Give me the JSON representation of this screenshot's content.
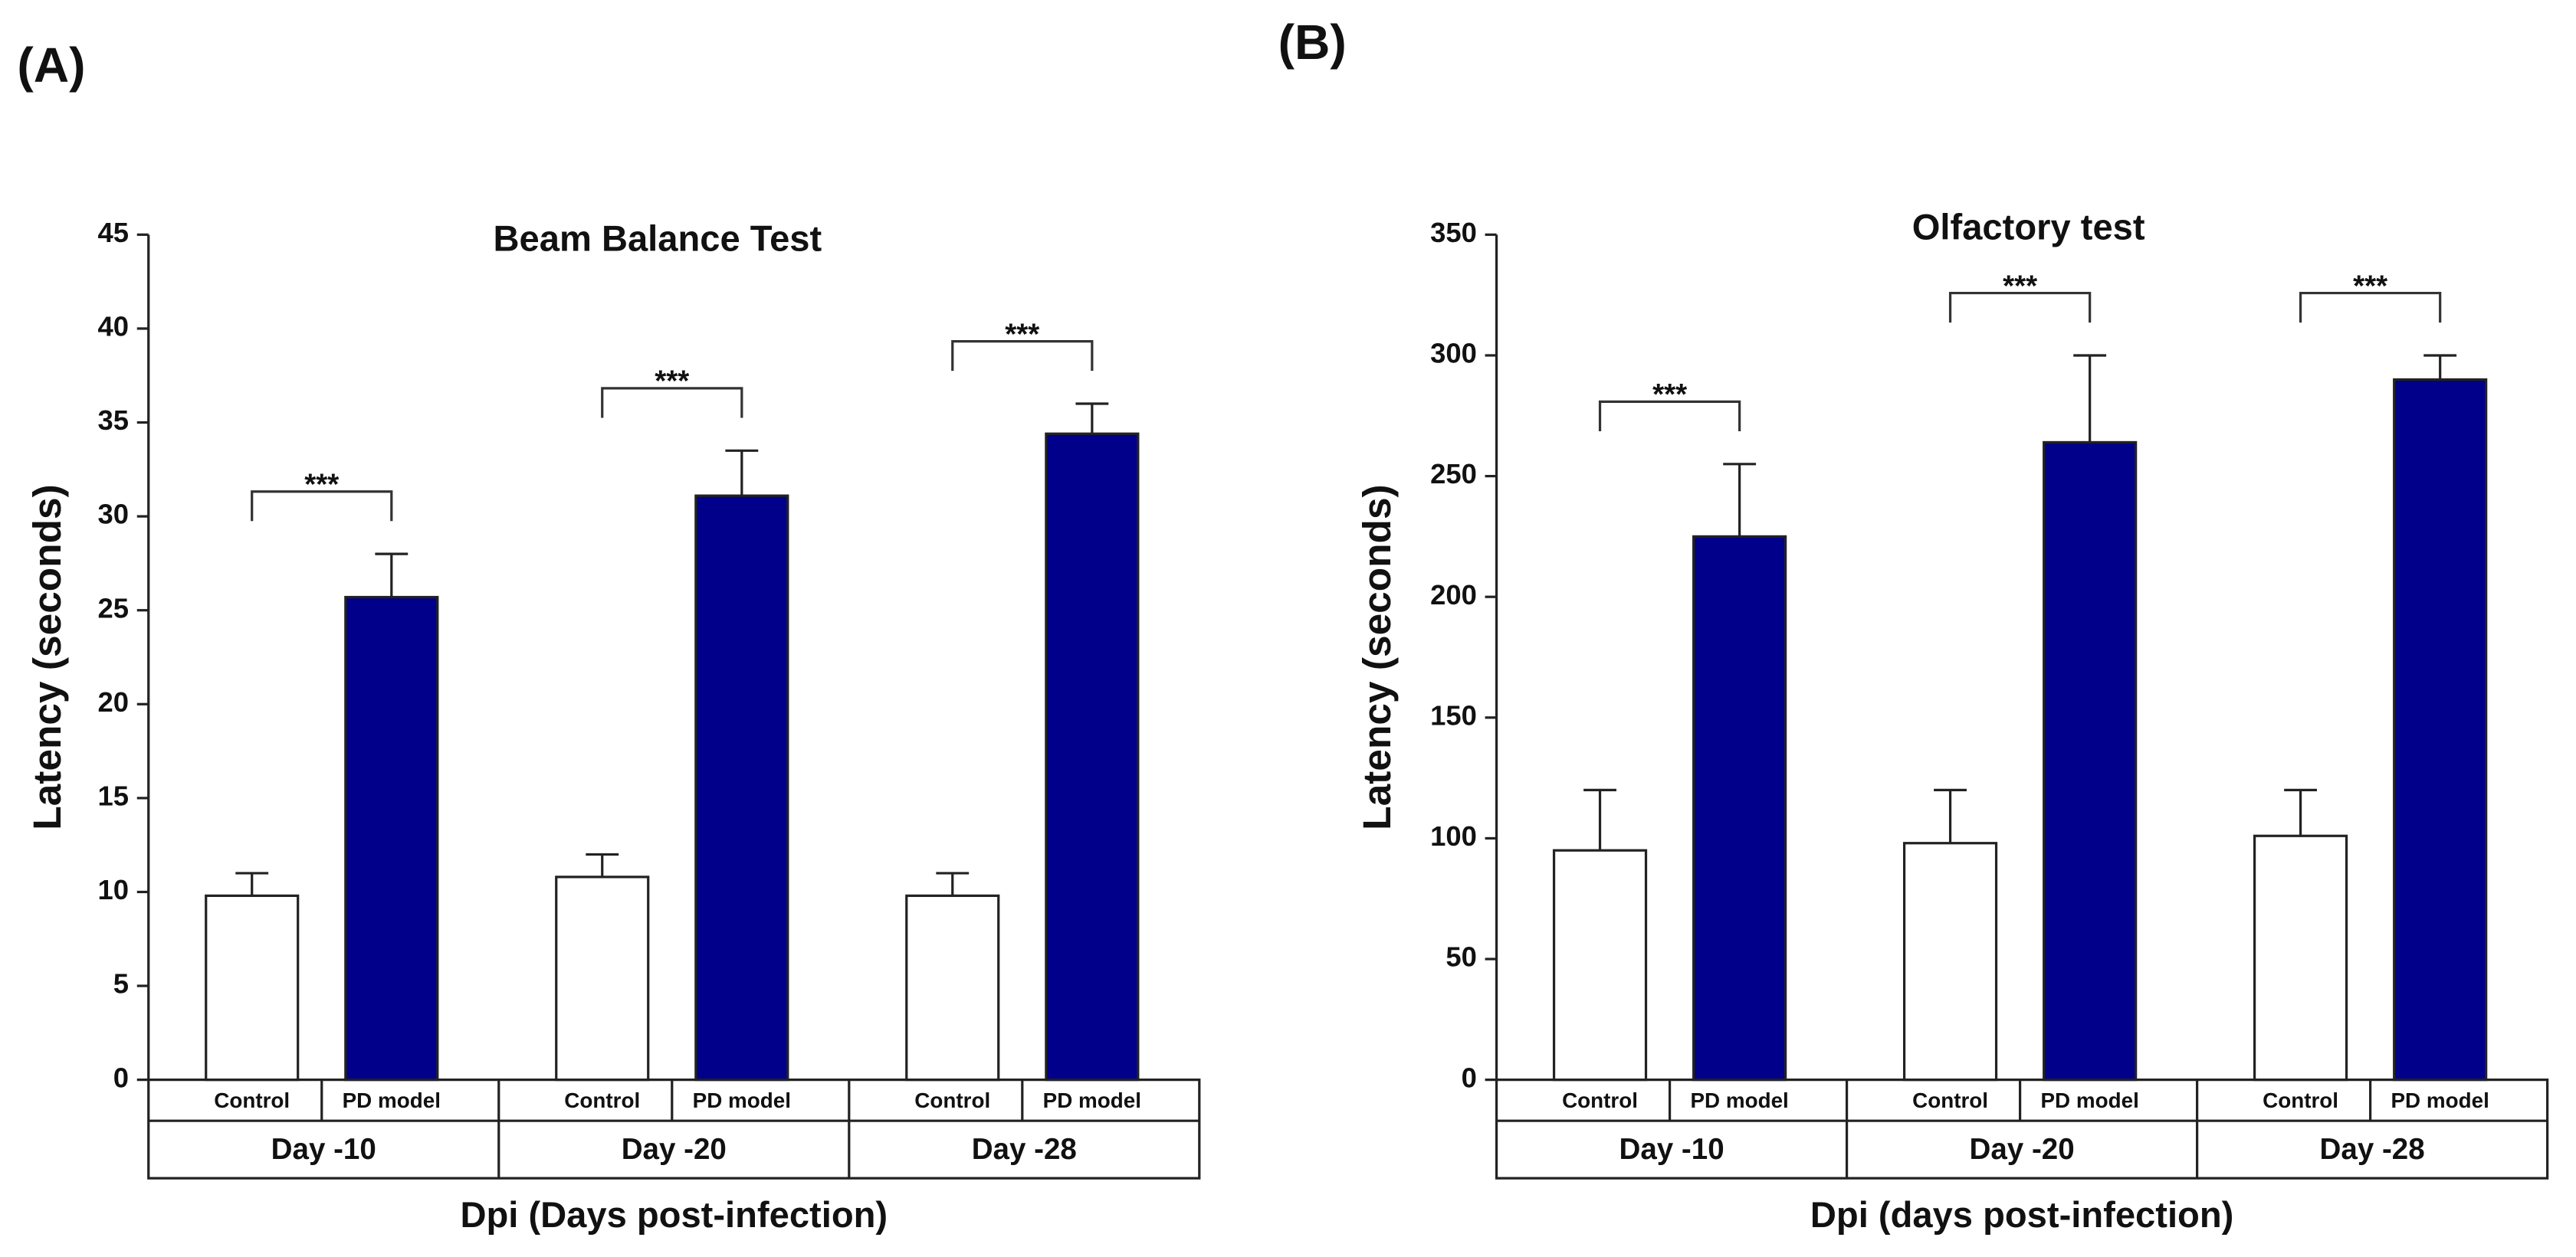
{
  "chart_data": [
    {
      "type": "bar",
      "panel": "(A)",
      "title": "Beam Balance Test",
      "y_label": "Latency (seconds)",
      "x_label": "Dpi (Days post-infection)",
      "categories": [
        "Day -10",
        "Day -20",
        "Day -28"
      ],
      "series": [
        {
          "name": "Control",
          "color": "#ffffff",
          "values": [
            9.8,
            10.8,
            9.8
          ],
          "errors": [
            1.2,
            1.2,
            1.2
          ]
        },
        {
          "name": "PD model",
          "color": "#00008b",
          "values": [
            25.7,
            31.1,
            34.4
          ],
          "errors": [
            2.3,
            2.4,
            1.6
          ]
        }
      ],
      "annotations": [
        "***",
        "***",
        "***"
      ],
      "ylim": [
        0,
        45
      ],
      "yticks": [
        0,
        5,
        10,
        15,
        20,
        25,
        30,
        35,
        40,
        45
      ]
    },
    {
      "type": "bar",
      "panel": "(B)",
      "title": "Olfactory test",
      "y_label": "Latency (seconds)",
      "x_label": "Dpi (days post-infection)",
      "categories": [
        "Day -10",
        "Day -20",
        "Day -28"
      ],
      "series": [
        {
          "name": "Control",
          "color": "#ffffff",
          "values": [
            95,
            98,
            101
          ],
          "errors": [
            25,
            22,
            19
          ]
        },
        {
          "name": "PD model",
          "color": "#00008b",
          "values": [
            225,
            264,
            290
          ],
          "errors": [
            30,
            36,
            10
          ]
        }
      ],
      "annotations": [
        "***",
        "***",
        "***"
      ],
      "ylim": [
        0,
        350
      ],
      "yticks": [
        0,
        50,
        100,
        150,
        200,
        250,
        300,
        350
      ]
    }
  ]
}
